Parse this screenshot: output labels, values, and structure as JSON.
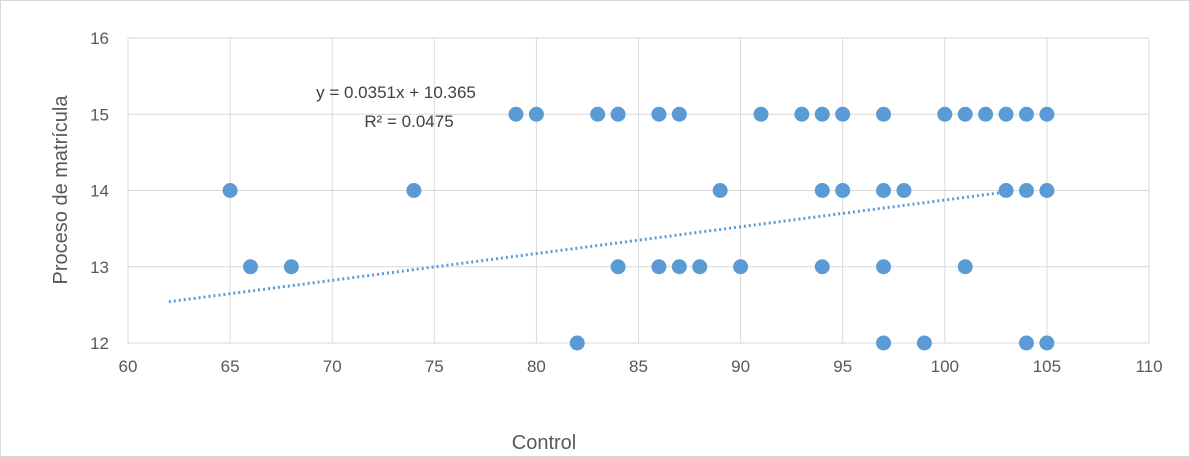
{
  "chart_data": {
    "type": "scatter",
    "title": "",
    "xlabel": "Control",
    "ylabel": "Proceso de matrícula",
    "xlim": [
      60,
      110
    ],
    "ylim": [
      12,
      16
    ],
    "x_ticks": [
      60,
      65,
      70,
      75,
      80,
      85,
      90,
      95,
      100,
      105,
      110
    ],
    "y_ticks": [
      12,
      13,
      14,
      15,
      16
    ],
    "grid": true,
    "legend": "none",
    "marker_color": "#5b9bd5",
    "trendline": {
      "type": "linear",
      "slope": 0.0351,
      "intercept": 10.365,
      "x_range": [
        62,
        103
      ],
      "equation": "y = 0.0351x + 10.365",
      "r_squared": "R² = 0.0475",
      "color": "#5b9bd5",
      "style": "dotted"
    },
    "points": [
      {
        "x": 65,
        "y": 14
      },
      {
        "x": 66,
        "y": 13
      },
      {
        "x": 68,
        "y": 13
      },
      {
        "x": 74,
        "y": 14
      },
      {
        "x": 79,
        "y": 15
      },
      {
        "x": 80,
        "y": 15
      },
      {
        "x": 82,
        "y": 12
      },
      {
        "x": 83,
        "y": 15
      },
      {
        "x": 84,
        "y": 15
      },
      {
        "x": 84,
        "y": 13
      },
      {
        "x": 86,
        "y": 15
      },
      {
        "x": 86,
        "y": 13
      },
      {
        "x": 87,
        "y": 15
      },
      {
        "x": 87,
        "y": 13
      },
      {
        "x": 88,
        "y": 13
      },
      {
        "x": 89,
        "y": 14
      },
      {
        "x": 90,
        "y": 13
      },
      {
        "x": 91,
        "y": 15
      },
      {
        "x": 93,
        "y": 15
      },
      {
        "x": 94,
        "y": 15
      },
      {
        "x": 94,
        "y": 14
      },
      {
        "x": 94,
        "y": 13
      },
      {
        "x": 95,
        "y": 15
      },
      {
        "x": 95,
        "y": 14
      },
      {
        "x": 97,
        "y": 15
      },
      {
        "x": 97,
        "y": 14
      },
      {
        "x": 97,
        "y": 13
      },
      {
        "x": 97,
        "y": 12
      },
      {
        "x": 98,
        "y": 14
      },
      {
        "x": 99,
        "y": 12
      },
      {
        "x": 100,
        "y": 15
      },
      {
        "x": 101,
        "y": 15
      },
      {
        "x": 101,
        "y": 13
      },
      {
        "x": 102,
        "y": 15
      },
      {
        "x": 103,
        "y": 15
      },
      {
        "x": 103,
        "y": 14
      },
      {
        "x": 104,
        "y": 15
      },
      {
        "x": 104,
        "y": 14
      },
      {
        "x": 104,
        "y": 12
      },
      {
        "x": 105,
        "y": 15
      },
      {
        "x": 105,
        "y": 14
      },
      {
        "x": 105,
        "y": 12
      }
    ]
  }
}
